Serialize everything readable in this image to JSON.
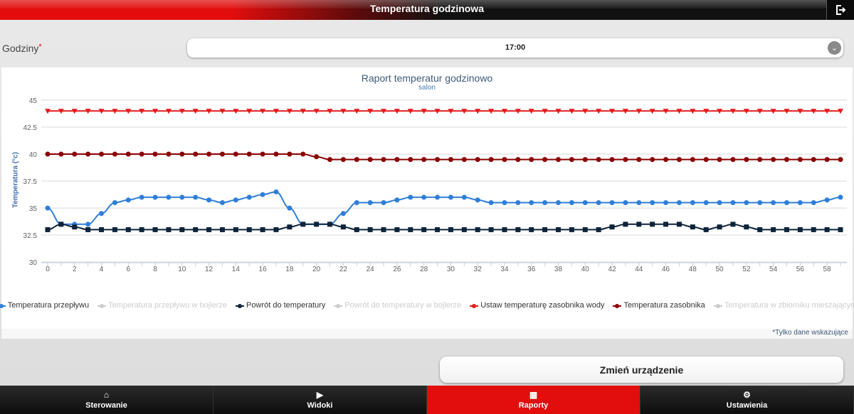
{
  "header": {
    "title": "Temperatura godzinowa",
    "logout_icon": "logout-icon"
  },
  "form": {
    "label": "Godziny",
    "required_mark": "*",
    "selected": "17:00"
  },
  "chart_data": {
    "type": "line",
    "title": "Raport temperatur godzinowo",
    "subtitle": "salon",
    "ylabel": "Temperatura (°c)",
    "xlabel": "",
    "ylim": [
      30,
      45
    ],
    "yticks": [
      "30",
      "32.5",
      "35",
      "37.5",
      "40",
      "42.5",
      "45"
    ],
    "xlim": [
      0,
      59
    ],
    "xticks": [
      "0",
      "2",
      "4",
      "6",
      "8",
      "10",
      "12",
      "14",
      "16",
      "18",
      "20",
      "22",
      "24",
      "26",
      "28",
      "30",
      "32",
      "34",
      "36",
      "38",
      "40",
      "42",
      "44",
      "46",
      "48",
      "50",
      "52",
      "54",
      "56",
      "58"
    ],
    "grid": true,
    "legend_position": "bottom",
    "series": [
      {
        "name": "Temperatura przepływu",
        "color": "#2f7ed8",
        "marker": "circle",
        "visible": true,
        "values": [
          35,
          33.5,
          33.5,
          33.5,
          34.5,
          35.5,
          35.75,
          36,
          36,
          36,
          36,
          36,
          35.75,
          35.5,
          35.75,
          36,
          36.25,
          36.5,
          35,
          33.5,
          33.5,
          33.5,
          34.5,
          35.5,
          35.5,
          35.5,
          35.75,
          36,
          36,
          36,
          36,
          36,
          35.75,
          35.5,
          35.5,
          35.5,
          35.5,
          35.5,
          35.5,
          35.5,
          35.5,
          35.5,
          35.5,
          35.5,
          35.5,
          35.5,
          35.5,
          35.5,
          35.5,
          35.5,
          35.5,
          35.5,
          35.5,
          35.5,
          35.5,
          35.5,
          35.5,
          35.5,
          35.75,
          36
        ]
      },
      {
        "name": "Temperatura przepływu w bojlerze",
        "color": "#cccccc",
        "marker": "diamond",
        "visible": false,
        "values": []
      },
      {
        "name": "Powrót do temperatury",
        "color": "#0d233a",
        "marker": "square",
        "visible": true,
        "values": [
          33,
          33.5,
          33.25,
          33,
          33,
          33,
          33,
          33,
          33,
          33,
          33,
          33,
          33,
          33,
          33,
          33,
          33,
          33,
          33.25,
          33.5,
          33.5,
          33.5,
          33.25,
          33,
          33,
          33,
          33,
          33,
          33,
          33,
          33,
          33,
          33,
          33,
          33,
          33,
          33,
          33,
          33,
          33,
          33,
          33,
          33.25,
          33.5,
          33.5,
          33.5,
          33.5,
          33.5,
          33.25,
          33,
          33.25,
          33.5,
          33.25,
          33,
          33,
          33,
          33,
          33,
          33,
          33
        ]
      },
      {
        "name": "Powrót do temperatury w bojlerze",
        "color": "#cccccc",
        "marker": "triangle",
        "visible": false,
        "values": []
      },
      {
        "name": "Ustaw temperaturę zasobnika wody",
        "color": "#e31a1c",
        "marker": "triangle-down",
        "visible": true,
        "values": [
          44,
          44,
          44,
          44,
          44,
          44,
          44,
          44,
          44,
          44,
          44,
          44,
          44,
          44,
          44,
          44,
          44,
          44,
          44,
          44,
          44,
          44,
          44,
          44,
          44,
          44,
          44,
          44,
          44,
          44,
          44,
          44,
          44,
          44,
          44,
          44,
          44,
          44,
          44,
          44,
          44,
          44,
          44,
          44,
          44,
          44,
          44,
          44,
          44,
          44,
          44,
          44,
          44,
          44,
          44,
          44,
          44,
          44,
          44,
          44
        ]
      },
      {
        "name": "Temperatura zasobnika",
        "color": "#8b0000",
        "marker": "circle",
        "visible": true,
        "values": [
          40,
          40,
          40,
          40,
          40,
          40,
          40,
          40,
          40,
          40,
          40,
          40,
          40,
          40,
          40,
          40,
          40,
          40,
          40,
          40,
          39.75,
          39.5,
          39.5,
          39.5,
          39.5,
          39.5,
          39.5,
          39.5,
          39.5,
          39.5,
          39.5,
          39.5,
          39.5,
          39.5,
          39.5,
          39.5,
          39.5,
          39.5,
          39.5,
          39.5,
          39.5,
          39.5,
          39.5,
          39.5,
          39.5,
          39.5,
          39.5,
          39.5,
          39.5,
          39.5,
          39.5,
          39.5,
          39.5,
          39.5,
          39.5,
          39.5,
          39.5,
          39.5,
          39.5,
          39.5
        ]
      },
      {
        "name": "Temperatura w zbiorniku mieszającym",
        "color": "#cccccc",
        "marker": "circle",
        "visible": false,
        "values": []
      }
    ]
  },
  "footnote": "*Tylko dane wskazujące",
  "change_device_button": "Zmień urządzenie",
  "nav": [
    {
      "label": "Sterowanie",
      "icon": "home-icon",
      "active": false
    },
    {
      "label": "Widoki",
      "icon": "video-icon",
      "active": false
    },
    {
      "label": "Raporty",
      "icon": "grid-icon",
      "active": true
    },
    {
      "label": "Ustawienia",
      "icon": "gear-icon",
      "active": false
    }
  ],
  "colors": {
    "accent": "#e20d0d",
    "header_dark": "#111111"
  }
}
